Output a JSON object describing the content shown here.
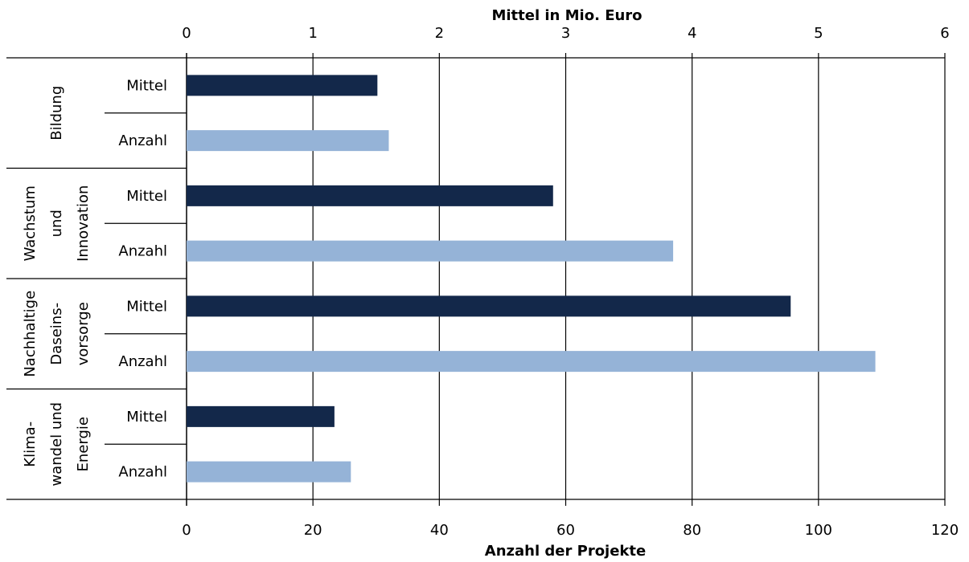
{
  "chart_data": {
    "type": "bar",
    "orientation": "horizontal",
    "top_axis": {
      "title": "Mittel in Mio. Euro",
      "range": [
        0,
        6
      ],
      "ticks": [
        "0",
        "1",
        "2",
        "3",
        "4",
        "5",
        "6"
      ]
    },
    "bottom_axis": {
      "title": "Anzahl der Projekte",
      "range": [
        0,
        120
      ],
      "ticks": [
        "0",
        "20",
        "40",
        "60",
        "80",
        "100",
        "120"
      ]
    },
    "grid": "vertical",
    "groups": [
      {
        "label_lines": [
          "Bildung"
        ],
        "bars": [
          {
            "label": "Mittel",
            "axis": "top",
            "value": 1.51
          },
          {
            "label": "Anzahl",
            "axis": "bottom",
            "value": 32
          }
        ]
      },
      {
        "label_lines": [
          "Wachstum",
          "und",
          "Innovation"
        ],
        "bars": [
          {
            "label": "Mittel",
            "axis": "top",
            "value": 2.9
          },
          {
            "label": "Anzahl",
            "axis": "bottom",
            "value": 77
          }
        ]
      },
      {
        "label_lines": [
          "Nachhaltige",
          "Daseins-",
          "vorsorge"
        ],
        "bars": [
          {
            "label": "Mittel",
            "axis": "top",
            "value": 4.78
          },
          {
            "label": "Anzahl",
            "axis": "bottom",
            "value": 109
          }
        ]
      },
      {
        "label_lines": [
          "Klima-",
          "wandel und",
          "Energie"
        ],
        "bars": [
          {
            "label": "Mittel",
            "axis": "top",
            "value": 1.17
          },
          {
            "label": "Anzahl",
            "axis": "bottom",
            "value": 26
          }
        ]
      }
    ],
    "colors": {
      "Mittel": "#13284a",
      "Anzahl": "#95b3d7"
    }
  }
}
